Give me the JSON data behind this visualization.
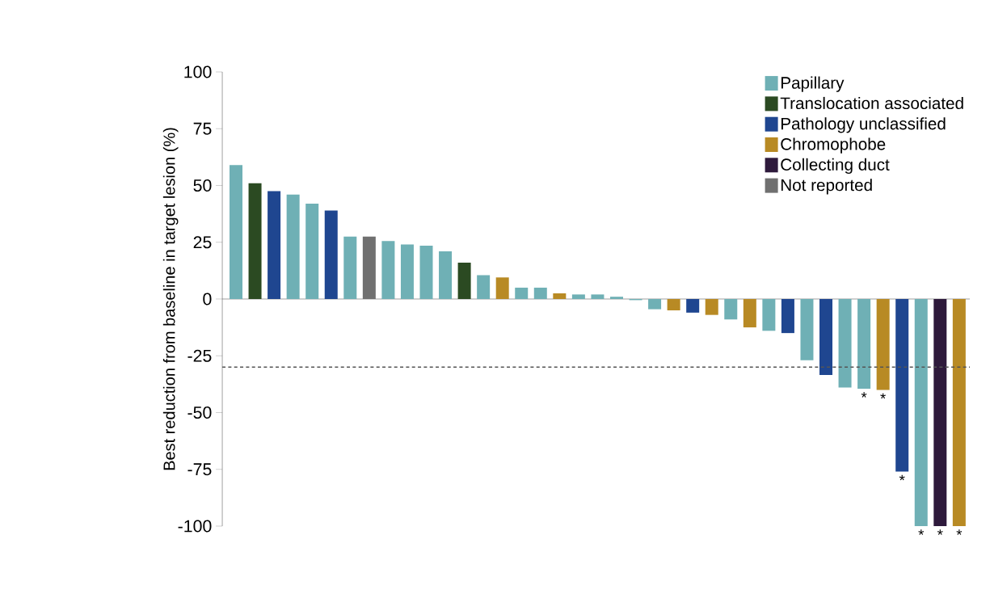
{
  "chart_data": {
    "type": "bar",
    "ylabel": "Best reduction from baseline in target lesion (%)",
    "categories": [
      null,
      null,
      null,
      null,
      null,
      null,
      null,
      null,
      null,
      null,
      null,
      null,
      null,
      null,
      null,
      null,
      null,
      null,
      null,
      null,
      null,
      null,
      null,
      null,
      null,
      null,
      null,
      null,
      null,
      null,
      null,
      null,
      null,
      null,
      null,
      null,
      null,
      null,
      null
    ],
    "series": [
      {
        "name": "Papillary",
        "color": "#6fb0b5",
        "values": [
          59,
          null,
          null,
          46,
          42,
          null,
          27.5,
          null,
          25.5,
          24,
          23.5,
          21,
          null,
          10.5,
          null,
          5,
          5,
          null,
          2,
          2,
          1,
          -0.5,
          -4.5,
          null,
          null,
          null,
          -9,
          null,
          -14,
          null,
          -27,
          null,
          -39,
          -39.5,
          null,
          null,
          -100,
          null,
          null
        ],
        "value_labels": [
          null,
          null,
          null,
          null,
          null,
          null,
          null,
          null,
          null,
          null,
          null,
          null,
          null,
          null,
          null,
          null,
          null,
          null,
          null,
          null,
          null,
          null,
          null,
          null,
          null,
          null,
          null,
          null,
          null,
          null,
          null,
          null,
          null,
          "*",
          null,
          null,
          "*",
          null,
          null
        ]
      },
      {
        "name": "Translocation associated",
        "color": "#2b4a22",
        "values": [
          null,
          51,
          null,
          null,
          null,
          null,
          null,
          null,
          null,
          null,
          null,
          null,
          16,
          null,
          null,
          null,
          null,
          null,
          null,
          null,
          null,
          null,
          null,
          null,
          null,
          null,
          null,
          null,
          null,
          null,
          null,
          null,
          null,
          null,
          null,
          null,
          null,
          null,
          null
        ]
      },
      {
        "name": "Pathology unclassified",
        "color": "#1f4690",
        "values": [
          null,
          null,
          47.5,
          null,
          null,
          39,
          null,
          null,
          null,
          null,
          null,
          null,
          null,
          null,
          null,
          null,
          null,
          null,
          null,
          null,
          null,
          null,
          null,
          null,
          -6,
          null,
          null,
          null,
          null,
          -15,
          null,
          -33.5,
          null,
          null,
          null,
          -76,
          null,
          null,
          null
        ],
        "value_labels": [
          null,
          null,
          null,
          null,
          null,
          null,
          null,
          null,
          null,
          null,
          null,
          null,
          null,
          null,
          null,
          null,
          null,
          null,
          null,
          null,
          null,
          null,
          null,
          null,
          null,
          null,
          null,
          null,
          null,
          null,
          null,
          null,
          null,
          null,
          null,
          "*",
          null,
          null,
          null
        ]
      },
      {
        "name": "Chromophobe",
        "color": "#b88a24",
        "values": [
          null,
          null,
          null,
          null,
          null,
          null,
          null,
          null,
          null,
          null,
          null,
          null,
          null,
          null,
          9.5,
          null,
          null,
          2.5,
          null,
          null,
          null,
          null,
          null,
          -5,
          null,
          -7,
          null,
          -12.5,
          null,
          null,
          null,
          null,
          null,
          null,
          -40,
          null,
          null,
          null,
          -100
        ],
        "value_labels": [
          null,
          null,
          null,
          null,
          null,
          null,
          null,
          null,
          null,
          null,
          null,
          null,
          null,
          null,
          null,
          null,
          null,
          null,
          null,
          null,
          null,
          null,
          null,
          null,
          null,
          null,
          null,
          null,
          null,
          null,
          null,
          null,
          null,
          null,
          "*",
          null,
          null,
          null,
          "*"
        ]
      },
      {
        "name": "Collecting duct",
        "color": "#2e1a3c",
        "values": [
          null,
          null,
          null,
          null,
          null,
          null,
          null,
          null,
          null,
          null,
          null,
          null,
          null,
          null,
          null,
          null,
          null,
          null,
          null,
          null,
          null,
          null,
          null,
          null,
          null,
          null,
          null,
          null,
          null,
          null,
          null,
          null,
          null,
          null,
          null,
          null,
          null,
          -100,
          null
        ],
        "value_labels": [
          null,
          null,
          null,
          null,
          null,
          null,
          null,
          null,
          null,
          null,
          null,
          null,
          null,
          null,
          null,
          null,
          null,
          null,
          null,
          null,
          null,
          null,
          null,
          null,
          null,
          null,
          null,
          null,
          null,
          null,
          null,
          null,
          null,
          null,
          null,
          null,
          null,
          "*",
          null
        ]
      },
      {
        "name": "Not reported",
        "color": "#707070",
        "values": [
          null,
          null,
          null,
          null,
          null,
          null,
          null,
          27.5,
          null,
          null,
          null,
          null,
          null,
          null,
          null,
          null,
          null,
          null,
          null,
          null,
          null,
          null,
          null,
          null,
          null,
          null,
          null,
          null,
          null,
          null,
          null,
          null,
          null,
          null,
          null,
          null,
          null,
          null,
          null
        ]
      }
    ],
    "ylim": [
      -100,
      100
    ],
    "yticks": [
      -100,
      -75,
      -50,
      -25,
      0,
      25,
      50,
      75,
      100
    ],
    "ref_lines": [
      {
        "axis": "y",
        "value": -30,
        "line_style": "dashed",
        "color": "#555555"
      }
    ],
    "legend": "top right",
    "tick_labels": "y"
  }
}
